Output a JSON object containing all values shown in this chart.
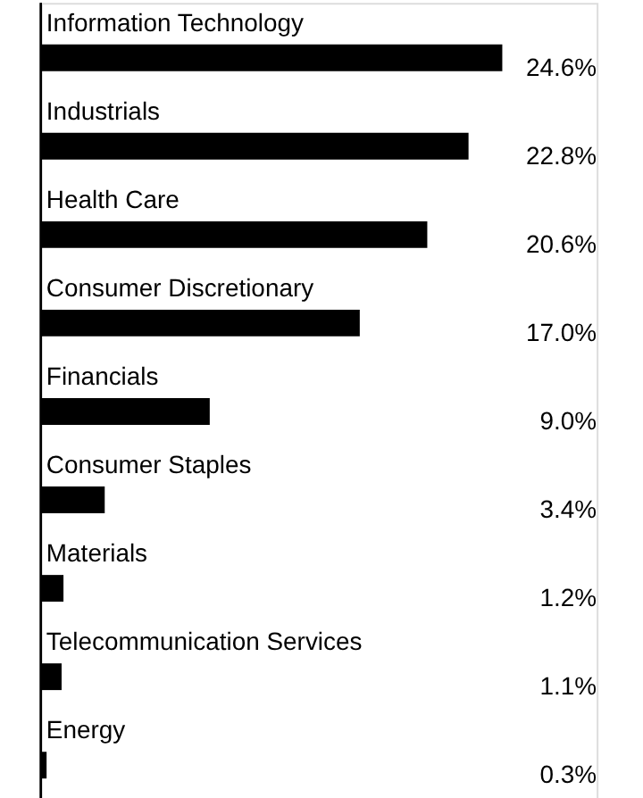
{
  "chart_data": {
    "type": "bar",
    "orientation": "horizontal",
    "categories": [
      "Information Technology",
      "Industrials",
      "Health Care",
      "Consumer Discretionary",
      "Financials",
      "Consumer Staples",
      "Materials",
      "Telecommunication Services",
      "Energy"
    ],
    "values": [
      24.6,
      22.8,
      20.6,
      17.0,
      9.0,
      3.4,
      1.2,
      1.1,
      0.3
    ],
    "value_labels": [
      "24.6%",
      "22.8%",
      "20.6%",
      "17.0%",
      "9.0%",
      "3.4%",
      "1.2%",
      "1.1%",
      "0.3%"
    ],
    "color": "#000000"
  }
}
